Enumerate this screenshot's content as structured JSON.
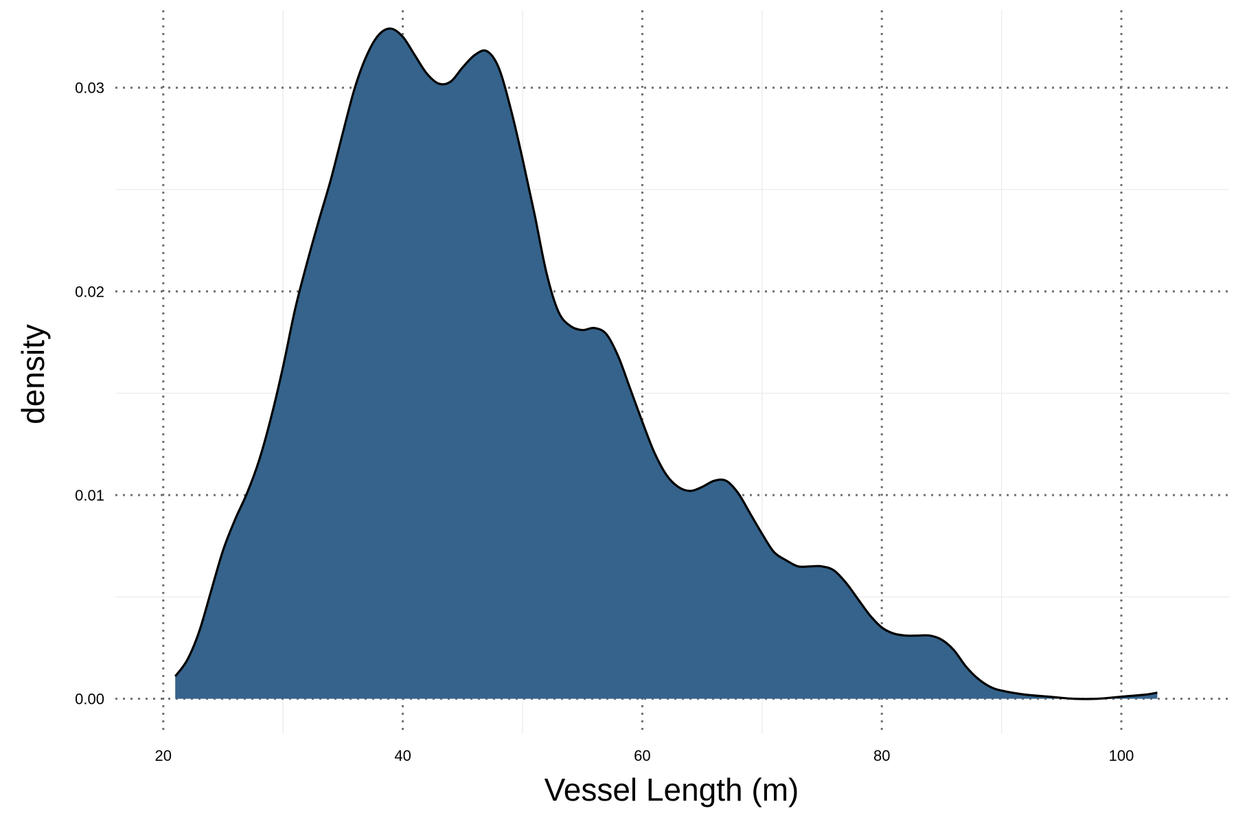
{
  "chart_data": {
    "type": "area",
    "title": "",
    "xlabel": "Vessel Length (m)",
    "ylabel": "density",
    "xlim": [
      16,
      109
    ],
    "ylim": [
      -0.0017,
      0.0338
    ],
    "x_ticks": [
      20,
      40,
      60,
      80,
      100
    ],
    "x_tick_labels": [
      "20",
      "40",
      "60",
      "80",
      "100"
    ],
    "x_minor_ticks": [
      30,
      50,
      70,
      90
    ],
    "y_ticks": [
      0.0,
      0.01,
      0.02,
      0.03
    ],
    "y_tick_labels": [
      "0.00",
      "0.01",
      "0.02",
      "0.03"
    ],
    "y_minor_ticks": [
      0.005,
      0.015,
      0.025
    ],
    "grid": true,
    "legend": "none",
    "fill_color": "#35638b",
    "line_color": "#000000",
    "major_grid_color": "#707070",
    "minor_grid_color": "#ebebeb",
    "series": [
      {
        "x": [
          21,
          22,
          23,
          24,
          25,
          26,
          27,
          28,
          29,
          30,
          31,
          32,
          33,
          34,
          35,
          36,
          37,
          38,
          39,
          40,
          41,
          42,
          43,
          44,
          45,
          46,
          47,
          48,
          49,
          50,
          51,
          52,
          53,
          54,
          55,
          56,
          57,
          58,
          59,
          60,
          61,
          62,
          63,
          64,
          65,
          66,
          67,
          68,
          69,
          70,
          71,
          72,
          73,
          74,
          75,
          76,
          77,
          78,
          79,
          80,
          81,
          82,
          83,
          84,
          85,
          86,
          87,
          88,
          89,
          90,
          92,
          94,
          96,
          98,
          100,
          102,
          103
        ],
        "y": [
          0.0011,
          0.0019,
          0.0033,
          0.0053,
          0.0073,
          0.0088,
          0.0101,
          0.0117,
          0.0138,
          0.0163,
          0.0191,
          0.0214,
          0.0235,
          0.0255,
          0.0278,
          0.03,
          0.0316,
          0.0326,
          0.0329,
          0.0325,
          0.0316,
          0.0307,
          0.0302,
          0.0303,
          0.031,
          0.0316,
          0.0318,
          0.031,
          0.029,
          0.0265,
          0.0238,
          0.0209,
          0.019,
          0.0183,
          0.0181,
          0.0182,
          0.0179,
          0.0168,
          0.0152,
          0.0136,
          0.0121,
          0.011,
          0.0104,
          0.0102,
          0.0104,
          0.0107,
          0.0107,
          0.0101,
          0.0091,
          0.0081,
          0.0072,
          0.0068,
          0.0065,
          0.0065,
          0.0065,
          0.0063,
          0.0057,
          0.0049,
          0.0041,
          0.0035,
          0.0032,
          0.0031,
          0.0031,
          0.0031,
          0.0029,
          0.0024,
          0.0016,
          0.001,
          0.0006,
          0.0004,
          0.0002,
          0.0001,
          0.0,
          0.0,
          0.0001,
          0.0002,
          0.0003
        ]
      }
    ]
  }
}
